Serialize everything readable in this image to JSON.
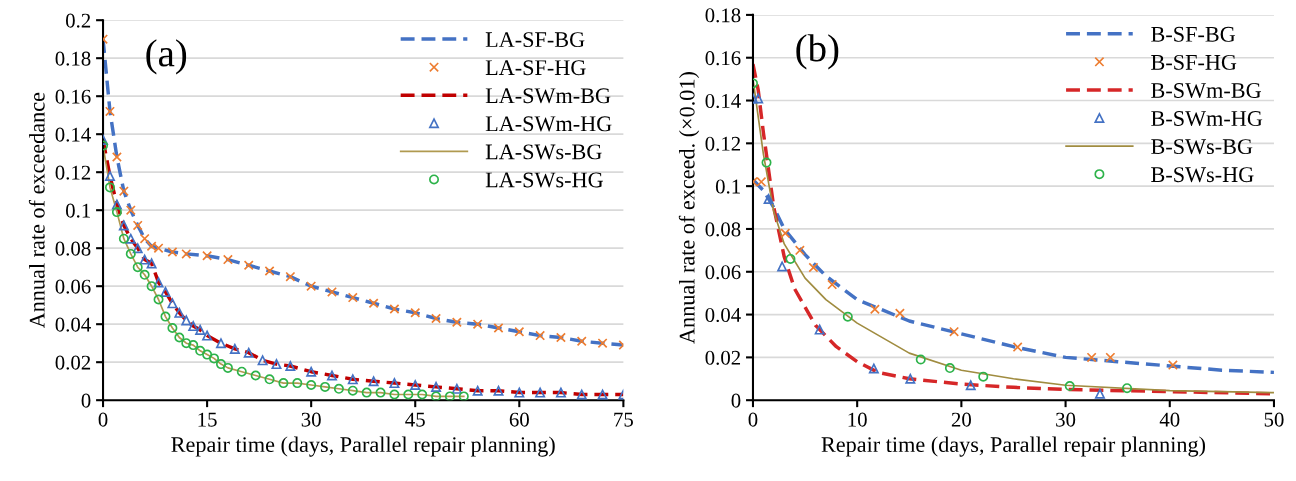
{
  "chart_data": [
    {
      "type": "line",
      "annotations": [
        "(a)"
      ],
      "xlabel": "Repair time (days, Parallel repair planning)",
      "ylabel": "Annual rate of exceedance",
      "xlim": [
        0,
        75
      ],
      "xticks": [
        0,
        15,
        30,
        45,
        60,
        75
      ],
      "ylim": [
        0,
        0.2
      ],
      "yticks": [
        0,
        0.02,
        0.04,
        0.06,
        0.08,
        0.1,
        0.12,
        0.14,
        0.16,
        0.18,
        0.2
      ],
      "grid": "y",
      "legend": "top right",
      "series": [
        {
          "name": "LA-SF-BG",
          "color": "#4472c4",
          "line_style": "dashed",
          "marker": "none",
          "x": [
            0,
            1,
            2,
            3,
            4,
            5,
            6,
            7,
            8,
            10,
            12,
            15,
            18,
            21,
            24,
            27,
            30,
            33,
            36,
            39,
            42,
            45,
            48,
            51,
            54,
            57,
            60,
            63,
            66,
            69,
            72,
            75
          ],
          "values": [
            0.19,
            0.152,
            0.128,
            0.11,
            0.1,
            0.092,
            0.085,
            0.081,
            0.08,
            0.078,
            0.077,
            0.076,
            0.074,
            0.071,
            0.068,
            0.065,
            0.06,
            0.057,
            0.054,
            0.051,
            0.048,
            0.046,
            0.043,
            0.041,
            0.04,
            0.038,
            0.036,
            0.034,
            0.033,
            0.031,
            0.03,
            0.029
          ]
        },
        {
          "name": "LA-SF-HG",
          "type": "scatter",
          "color": "#ed7d31",
          "marker": "cross",
          "x": [
            0,
            1,
            2,
            3,
            4,
            5,
            6,
            7,
            8,
            10,
            12,
            15,
            18,
            21,
            24,
            27,
            30,
            33,
            36,
            39,
            42,
            45,
            48,
            51,
            54,
            57,
            60,
            63,
            66,
            69,
            72,
            75
          ],
          "values": [
            0.19,
            0.152,
            0.128,
            0.11,
            0.1,
            0.092,
            0.085,
            0.081,
            0.08,
            0.078,
            0.077,
            0.076,
            0.074,
            0.071,
            0.068,
            0.065,
            0.06,
            0.057,
            0.054,
            0.051,
            0.048,
            0.046,
            0.043,
            0.041,
            0.04,
            0.038,
            0.036,
            0.034,
            0.033,
            0.031,
            0.03,
            0.029
          ]
        },
        {
          "name": "LA-SWm-BG",
          "color": "#c00000",
          "line_style": "dashed",
          "marker": "none",
          "x": [
            0,
            1,
            2,
            3,
            4,
            5,
            6,
            7,
            8,
            9,
            10,
            11,
            12,
            13,
            14,
            15,
            17,
            19,
            21,
            23,
            25,
            27,
            30,
            33,
            36,
            39,
            42,
            45,
            48,
            51,
            54,
            57,
            60,
            63,
            66,
            69,
            72,
            75
          ],
          "values": [
            0.137,
            0.118,
            0.103,
            0.092,
            0.085,
            0.08,
            0.074,
            0.072,
            0.062,
            0.057,
            0.051,
            0.046,
            0.042,
            0.039,
            0.037,
            0.034,
            0.03,
            0.027,
            0.025,
            0.021,
            0.019,
            0.018,
            0.015,
            0.013,
            0.011,
            0.01,
            0.009,
            0.008,
            0.007,
            0.006,
            0.005,
            0.005,
            0.004,
            0.004,
            0.004,
            0.003,
            0.003,
            0.003
          ]
        },
        {
          "name": "LA-SWm-HG",
          "type": "scatter",
          "color": "#4472c4",
          "marker": "triangle",
          "x": [
            0,
            1,
            2,
            3,
            4,
            5,
            6,
            7,
            8,
            9,
            10,
            11,
            12,
            13,
            14,
            15,
            17,
            19,
            21,
            23,
            25,
            27,
            30,
            33,
            36,
            39,
            42,
            45,
            48,
            51,
            54,
            57,
            60,
            63,
            66,
            69,
            72,
            75
          ],
          "values": [
            0.137,
            0.118,
            0.103,
            0.092,
            0.085,
            0.08,
            0.074,
            0.072,
            0.062,
            0.057,
            0.051,
            0.046,
            0.042,
            0.039,
            0.037,
            0.034,
            0.03,
            0.027,
            0.025,
            0.021,
            0.019,
            0.018,
            0.015,
            0.013,
            0.011,
            0.01,
            0.009,
            0.008,
            0.007,
            0.006,
            0.005,
            0.005,
            0.004,
            0.004,
            0.004,
            0.003,
            0.003,
            0.003
          ]
        },
        {
          "name": "LA-SWs-BG",
          "color": "#b09a50",
          "line_style": "solid",
          "marker": "none",
          "x": [
            0,
            1,
            2,
            3,
            4,
            5,
            6,
            7,
            8,
            9,
            10,
            11,
            12,
            13,
            14,
            15,
            16,
            17,
            18,
            20,
            22,
            24,
            26,
            28,
            30,
            32,
            34,
            36,
            38,
            40,
            42,
            44,
            46,
            48,
            50,
            52
          ],
          "values": [
            0.134,
            0.112,
            0.099,
            0.085,
            0.077,
            0.07,
            0.066,
            0.06,
            0.053,
            0.044,
            0.038,
            0.033,
            0.03,
            0.029,
            0.026,
            0.024,
            0.022,
            0.019,
            0.017,
            0.015,
            0.013,
            0.011,
            0.009,
            0.009,
            0.008,
            0.007,
            0.006,
            0.005,
            0.004,
            0.004,
            0.003,
            0.003,
            0.003,
            0.002,
            0.002,
            0.002
          ]
        },
        {
          "name": "LA-SWs-HG",
          "type": "scatter",
          "color": "#2db34a",
          "marker": "circle",
          "x": [
            0,
            1,
            2,
            3,
            4,
            5,
            6,
            7,
            8,
            9,
            10,
            11,
            12,
            13,
            14,
            15,
            16,
            17,
            18,
            20,
            22,
            24,
            26,
            28,
            30,
            32,
            34,
            36,
            38,
            40,
            42,
            44,
            46,
            48,
            50,
            52
          ],
          "values": [
            0.134,
            0.112,
            0.099,
            0.085,
            0.077,
            0.07,
            0.066,
            0.06,
            0.053,
            0.044,
            0.038,
            0.033,
            0.03,
            0.029,
            0.026,
            0.024,
            0.022,
            0.019,
            0.017,
            0.015,
            0.013,
            0.011,
            0.009,
            0.009,
            0.008,
            0.007,
            0.006,
            0.005,
            0.004,
            0.004,
            0.003,
            0.003,
            0.003,
            0.002,
            0.002,
            0.002
          ]
        }
      ]
    },
    {
      "type": "line",
      "annotations": [
        "(b)"
      ],
      "xlabel": "Repair time (days, Parallel repair planning)",
      "ylabel": "Annual rate of exceed. (×0.01)",
      "xlim": [
        0,
        50
      ],
      "xticks": [
        0,
        10,
        20,
        30,
        40,
        50
      ],
      "ylim": [
        0,
        0.18
      ],
      "yticks": [
        0,
        0.02,
        0.04,
        0.06,
        0.08,
        0.1,
        0.12,
        0.14,
        0.16,
        0.18
      ],
      "grid": "y",
      "legend": "top right",
      "series": [
        {
          "name": "B-SF-BG",
          "color": "#4472c4",
          "line_style": "dashed",
          "marker": "none",
          "x": [
            0,
            1,
            2,
            3,
            5,
            7,
            10,
            15,
            20,
            25,
            30,
            35,
            40,
            45,
            50
          ],
          "values": [
            0.103,
            0.098,
            0.09,
            0.08,
            0.068,
            0.058,
            0.047,
            0.037,
            0.031,
            0.025,
            0.02,
            0.018,
            0.016,
            0.014,
            0.013
          ]
        },
        {
          "name": "B-SF-HG",
          "type": "scatter",
          "color": "#ed7d31",
          "marker": "cross",
          "x": [
            0,
            0.8,
            3.1,
            4.5,
            5.8,
            7.6,
            11.7,
            14.1,
            19.3,
            25.4,
            32.5,
            34.3,
            40.3
          ],
          "values": [
            0.102,
            0.102,
            0.078,
            0.07,
            0.062,
            0.054,
            0.0425,
            0.0406,
            0.032,
            0.0248,
            0.02,
            0.02,
            0.0164
          ]
        },
        {
          "name": "B-SWm-BG",
          "color": "#d62728",
          "line_style": "dashed",
          "marker": "none",
          "x": [
            0,
            0.5,
            1,
            2,
            3,
            4,
            6,
            8,
            10,
            12,
            15,
            20,
            25,
            30,
            40,
            50
          ],
          "values": [
            0.157,
            0.145,
            0.125,
            0.09,
            0.067,
            0.052,
            0.035,
            0.025,
            0.018,
            0.013,
            0.01,
            0.0075,
            0.006,
            0.005,
            0.004,
            0.003
          ]
        },
        {
          "name": "B-SWm-HG",
          "type": "scatter",
          "color": "#4472c4",
          "marker": "triangle",
          "x": [
            0,
            0.5,
            1.5,
            2.8,
            6.4,
            11.6,
            15.1,
            20.9,
            33.3
          ],
          "values": [
            0.141,
            0.141,
            0.094,
            0.0625,
            0.033,
            0.0148,
            0.01,
            0.007,
            0.003
          ]
        },
        {
          "name": "B-SWs-BG",
          "color": "#a08c40",
          "line_style": "solid",
          "marker": "none",
          "x": [
            0,
            1,
            2,
            3,
            5,
            7,
            10,
            15,
            20,
            25,
            30,
            40,
            50
          ],
          "values": [
            0.15,
            0.115,
            0.088,
            0.073,
            0.057,
            0.047,
            0.036,
            0.022,
            0.014,
            0.01,
            0.007,
            0.0045,
            0.0035
          ]
        },
        {
          "name": "B-SWs-HG",
          "type": "scatter",
          "color": "#2db34a",
          "marker": "circle",
          "x": [
            0,
            1.3,
            3.6,
            9.1,
            16.1,
            18.9,
            22.1,
            30.4,
            35.9
          ],
          "values": [
            0.148,
            0.111,
            0.066,
            0.039,
            0.019,
            0.015,
            0.011,
            0.0066,
            0.0056
          ]
        }
      ]
    }
  ]
}
